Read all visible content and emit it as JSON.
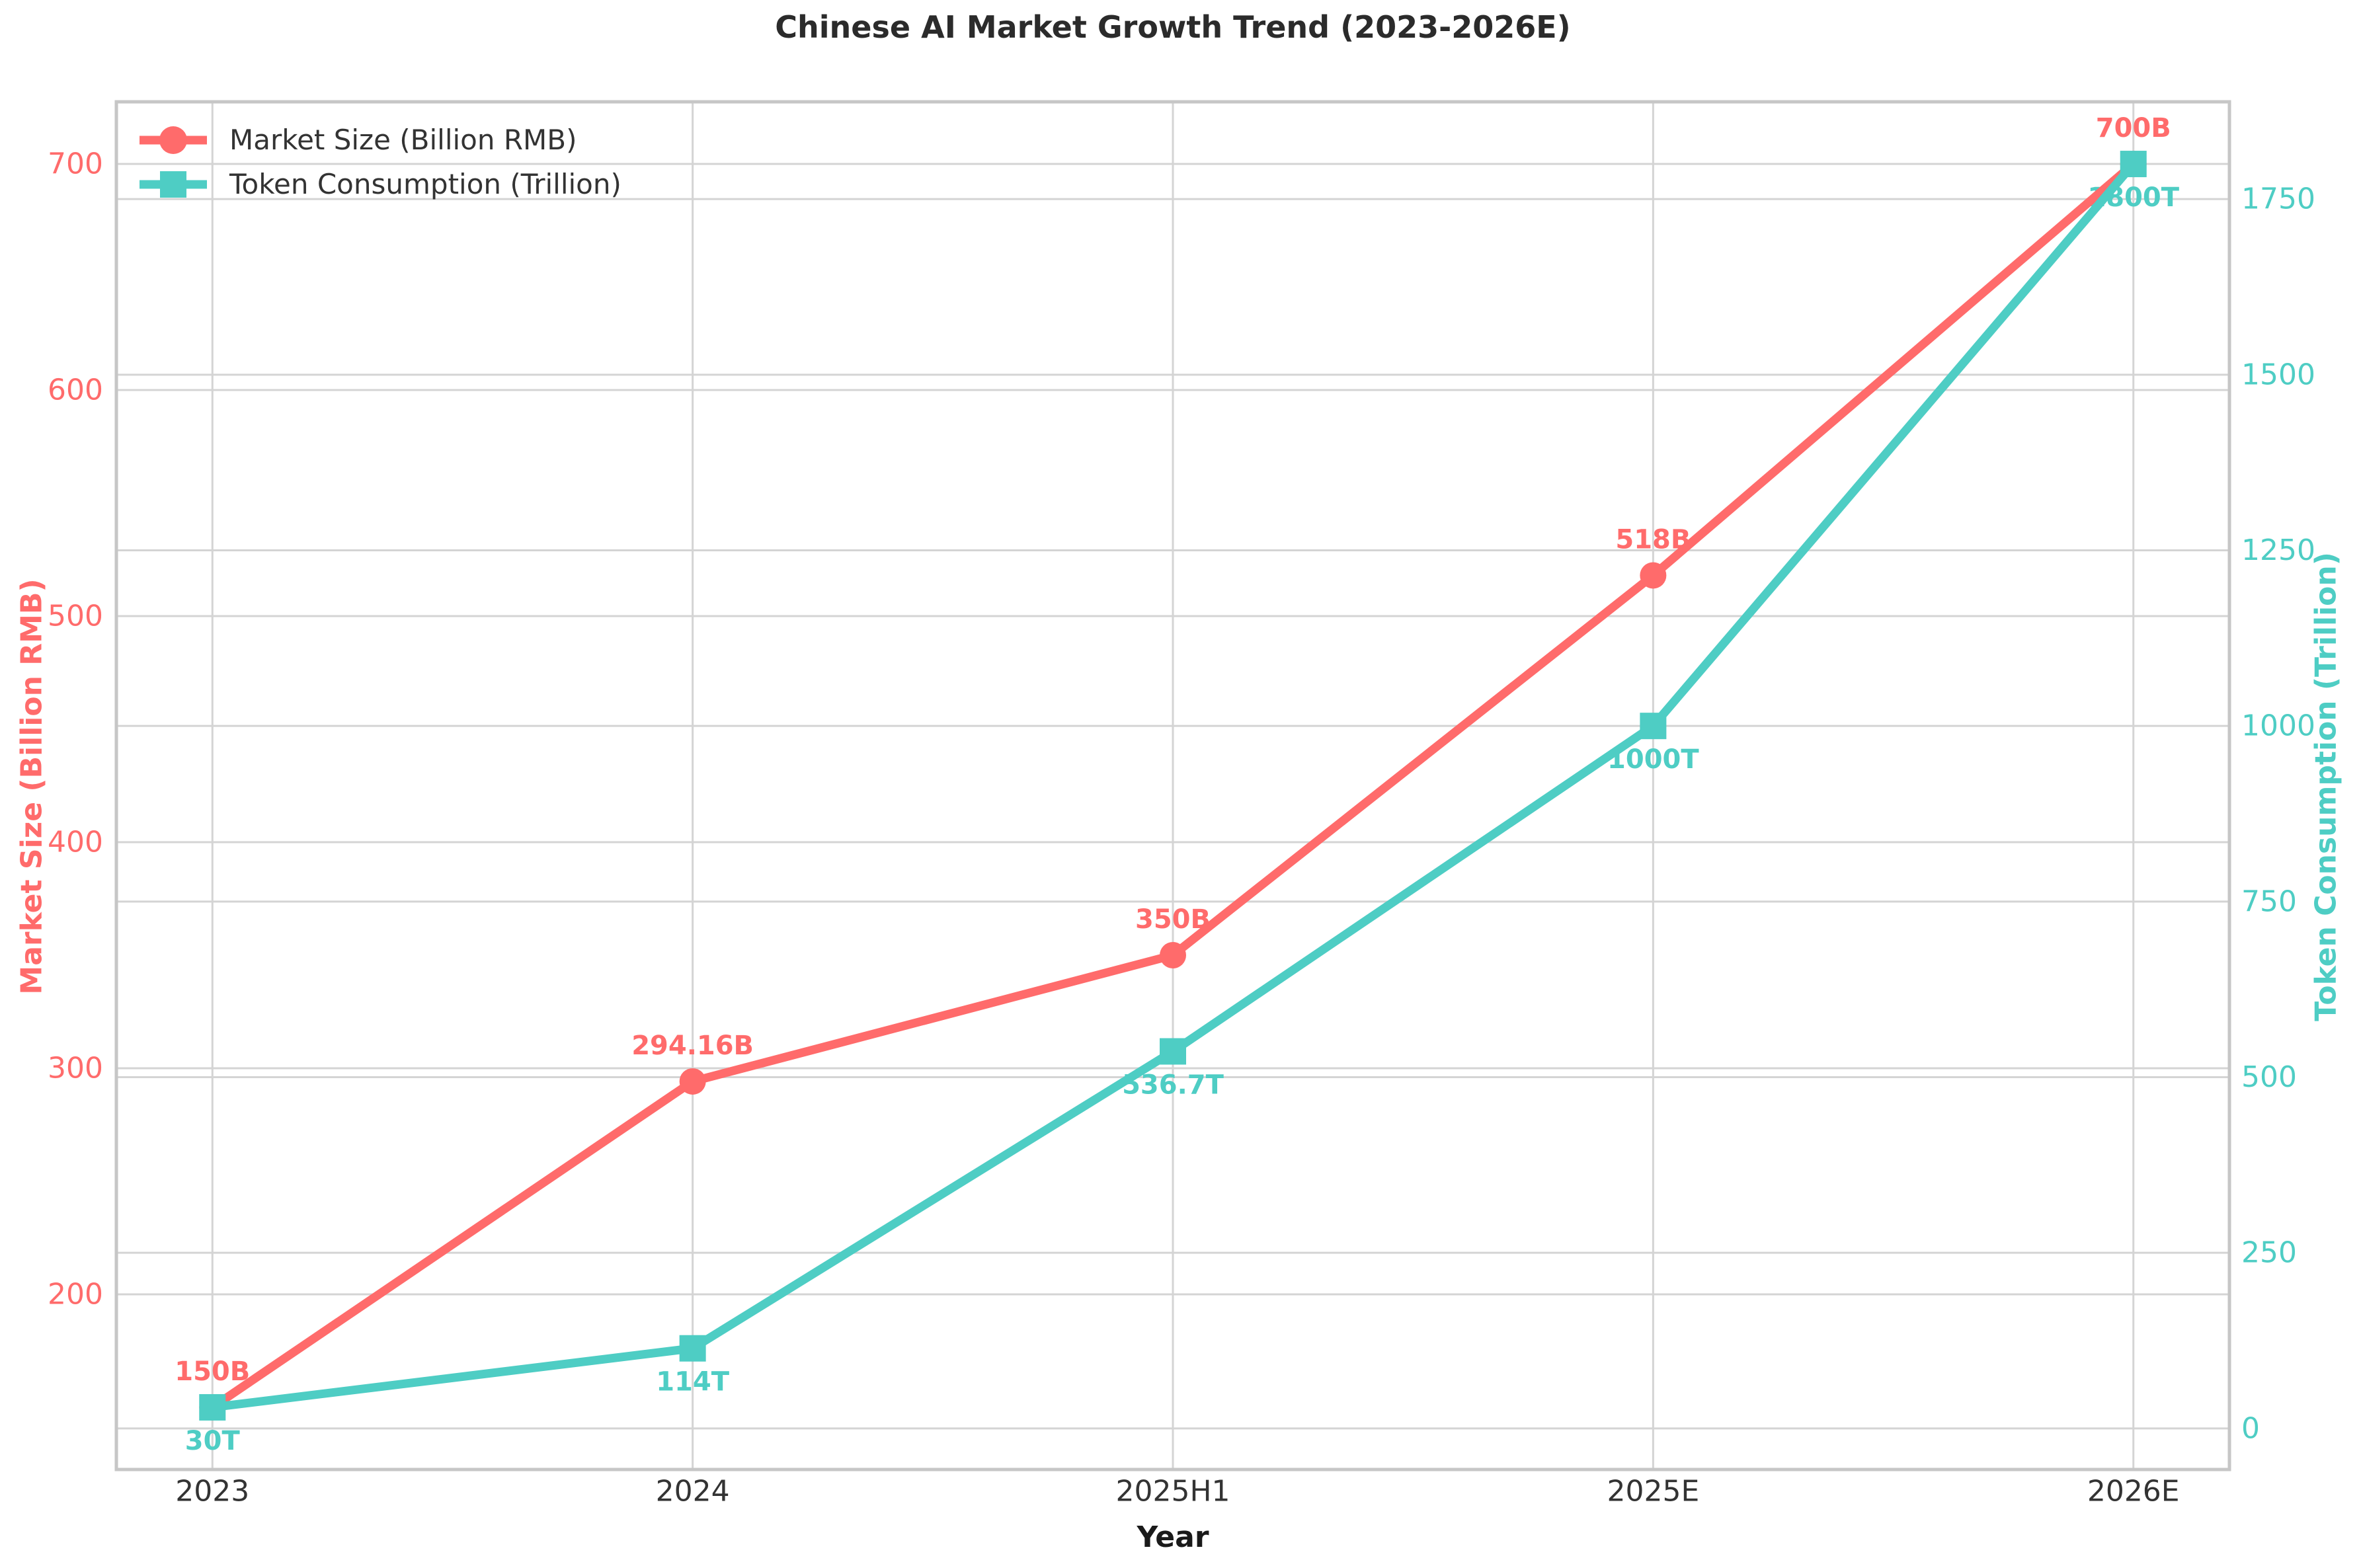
{
  "title": "Chinese AI Market Growth Trend (2023-2026E)",
  "legend": {
    "position": "upper left",
    "items": [
      {
        "label": "Market Size (Billion RMB)",
        "marker": "circle-icon"
      },
      {
        "label": "Token Consumption (Trillion)",
        "marker": "square-icon"
      }
    ]
  },
  "axes": {
    "x": {
      "label": "Year",
      "categories": [
        "2023",
        "2024",
        "2025H1",
        "2025E",
        "2026E"
      ]
    },
    "left": {
      "label": "Market Size (Billion RMB)",
      "ticks": [
        200,
        300,
        400,
        500,
        600,
        700
      ],
      "color": "#FF6B6B"
    },
    "right": {
      "label": "Token Consumption (Trillion)",
      "ticks": [
        0,
        250,
        500,
        750,
        1000,
        1250,
        1500,
        1750
      ],
      "color": "#4ECDC4"
    }
  },
  "chart_data": {
    "type": "line",
    "title": "Chinese AI Market Growth Trend (2023-2026E)",
    "xlabel": "Year",
    "categories": [
      "2023",
      "2024",
      "2025H1",
      "2025E",
      "2026E"
    ],
    "series": [
      {
        "name": "Market Size (Billion RMB)",
        "yaxis": "left",
        "color": "#FF6B6B",
        "marker": "circle",
        "values": [
          150,
          294.16,
          350,
          518,
          700
        ],
        "point_labels": [
          "150B",
          "294.16B",
          "350B",
          "518B",
          "700B"
        ],
        "label_side": "above"
      },
      {
        "name": "Token Consumption (Trillion)",
        "yaxis": "right",
        "color": "#4ECDC4",
        "marker": "square",
        "values": [
          30,
          114,
          536.7,
          1000,
          1800
        ],
        "point_labels": [
          "30T",
          "114T",
          "536.7T",
          "1000T",
          "1800T"
        ],
        "label_side": "below"
      }
    ],
    "left_ylim": [
      122.5,
      727.5
    ],
    "right_ylim": [
      -58.5,
      1888.5
    ],
    "left_ticks": [
      200,
      300,
      400,
      500,
      600,
      700
    ],
    "right_ticks": [
      0,
      250,
      500,
      750,
      1000,
      1250,
      1500,
      1750
    ],
    "x_margin_frac": 0.2,
    "grid": true,
    "legend_position": "upper left"
  },
  "colors": {
    "market": "#FF6B6B",
    "token": "#4ECDC4",
    "grid": "#d4d4d4",
    "spine": "#c6c6c6",
    "tick_text": "#333333",
    "title_text": "#2b2b2b"
  }
}
